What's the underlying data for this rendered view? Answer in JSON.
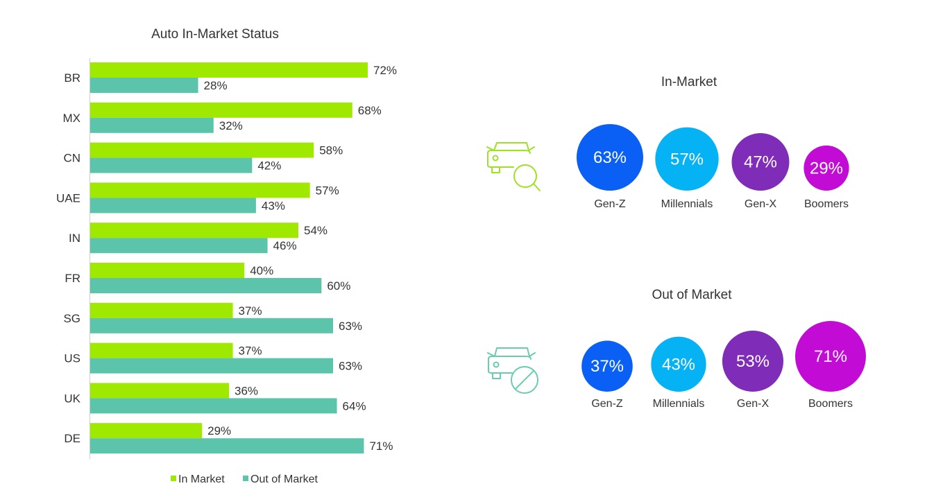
{
  "colors": {
    "in_market": "#9FE800",
    "out_of_market": "#5CC4AA",
    "gen_z": "#0A5FF5",
    "millennials": "#05B3F5",
    "gen_x": "#7F2DB8",
    "boomers": "#C20CD6",
    "icon_in_market": "#9FE024",
    "icon_out_market": "#6ACBB4",
    "text": "#333333",
    "axis": "#cccccc"
  },
  "icons": {
    "in_market": "car-search-icon",
    "out_of_market": "car-no-icon"
  },
  "chart_data": [
    {
      "type": "bar",
      "orientation": "horizontal",
      "title": "Auto In-Market Status",
      "categories": [
        "BR",
        "MX",
        "CN",
        "UAE",
        "IN",
        "FR",
        "SG",
        "US",
        "UK",
        "DE"
      ],
      "series": [
        {
          "name": "In Market",
          "values": [
            72,
            68,
            58,
            57,
            54,
            40,
            37,
            37,
            36,
            29
          ]
        },
        {
          "name": "Out of Market",
          "values": [
            28,
            32,
            42,
            43,
            46,
            60,
            63,
            63,
            64,
            71
          ]
        }
      ],
      "value_suffix": "%",
      "legend": "bottom",
      "grid": false
    },
    {
      "type": "bubble",
      "title": "In-Market",
      "categories": [
        "Gen-Z",
        "Millennials",
        "Gen-X",
        "Boomers"
      ],
      "values": [
        63,
        57,
        47,
        29
      ],
      "value_suffix": "%"
    },
    {
      "type": "bubble",
      "title": "Out of Market",
      "categories": [
        "Gen-Z",
        "Millennials",
        "Gen-X",
        "Boomers"
      ],
      "values": [
        37,
        43,
        53,
        71
      ],
      "value_suffix": "%"
    }
  ]
}
